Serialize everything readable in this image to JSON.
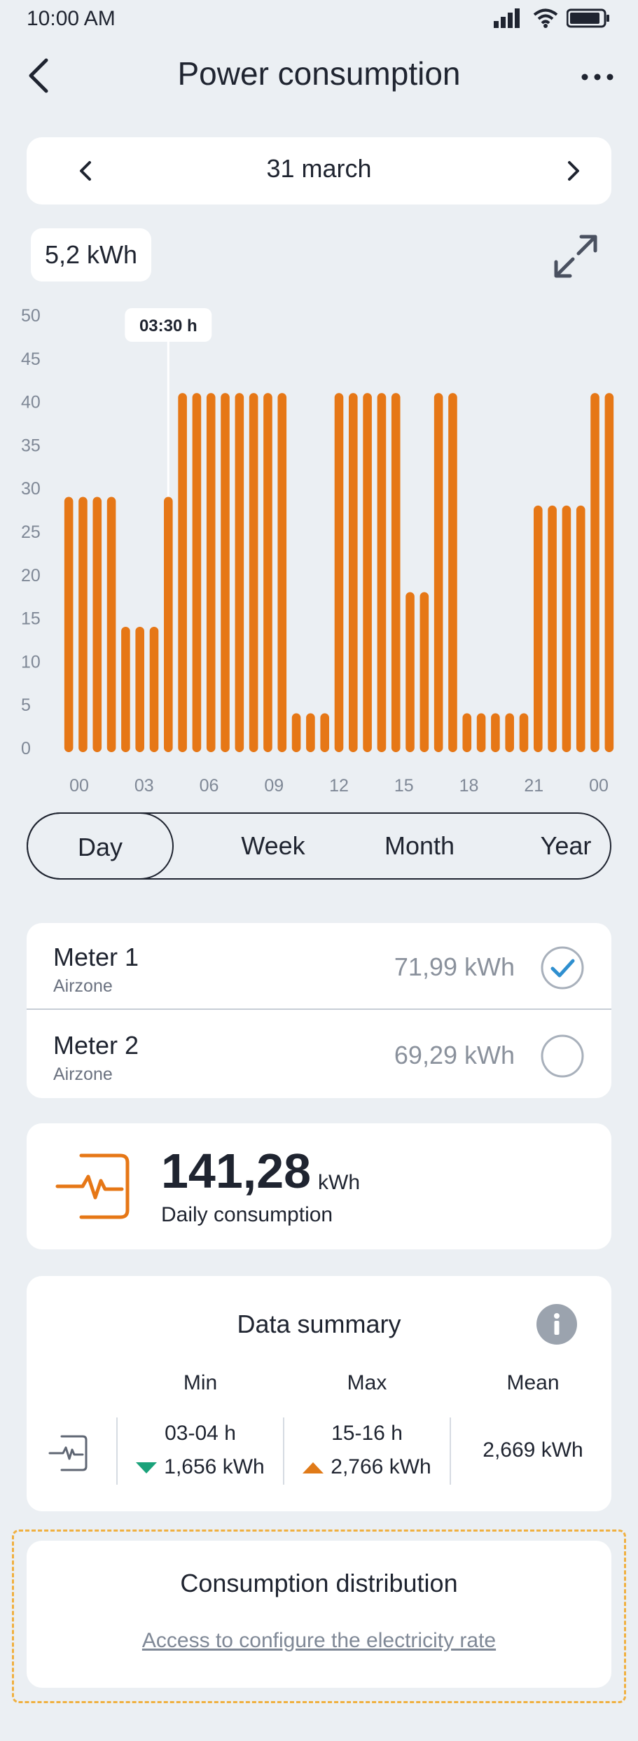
{
  "status": {
    "time": "10:00 AM"
  },
  "header": {
    "title": "Power consumption"
  },
  "date_nav": {
    "label": "31 march"
  },
  "total": {
    "label": "5,2 kWh"
  },
  "chart_data": {
    "type": "bar",
    "title": "",
    "xlabel": "",
    "ylabel": "",
    "ylim": [
      0,
      50
    ],
    "y_ticks": [
      "0",
      "5",
      "10",
      "15",
      "20",
      "25",
      "30",
      "35",
      "40",
      "45",
      "50"
    ],
    "x_ticks": [
      "00",
      "03",
      "06",
      "09",
      "12",
      "15",
      "18",
      "21",
      "00"
    ],
    "tooltip": {
      "label": "03:30 h",
      "index": 7
    },
    "color": "#e67716",
    "values": [
      29,
      29,
      29,
      29,
      14,
      14,
      14,
      29,
      41,
      41,
      41,
      41,
      41,
      41,
      41,
      41,
      4,
      4,
      4,
      41,
      41,
      41,
      41,
      41,
      18,
      18,
      41,
      41,
      4,
      4,
      4,
      4,
      4,
      28,
      28,
      28,
      28,
      41,
      41
    ]
  },
  "periods": [
    "Day",
    "Week",
    "Month",
    "Year"
  ],
  "meters": [
    {
      "name": "Meter 1",
      "sub": "Airzone",
      "value": "71,99 kWh",
      "checked": true
    },
    {
      "name": "Meter 2",
      "sub": "Airzone",
      "value": "69,29 kWh",
      "checked": false
    }
  ],
  "daily": {
    "value": "141,28",
    "unit": "kWh",
    "label": "Daily consumption",
    "icon": "power-meter-icon"
  },
  "summary": {
    "title": "Data summary",
    "headers": {
      "min": "Min",
      "max": "Max",
      "mean": "Mean"
    },
    "min_time": "03-04 h",
    "min_value": "1,656 kWh",
    "max_time": "15-16 h",
    "max_value": "2,766 kWh",
    "mean_value": "2,669 kWh"
  },
  "distribution": {
    "title": "Consumption distribution",
    "link": "Access to configure the electricity rate"
  },
  "colors": {
    "accent": "#e67716",
    "check": "#2f8fcf",
    "green": "#1aa27a",
    "background": "#ebeff3"
  }
}
